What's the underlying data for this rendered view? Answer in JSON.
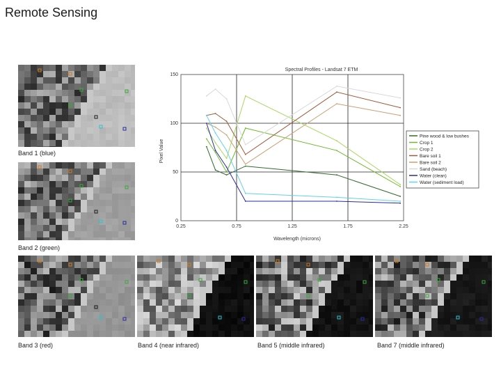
{
  "slide": {
    "title": "Remote Sensing"
  },
  "bands": [
    {
      "caption": "Band 1 (blue)"
    },
    {
      "caption": "Band 2 (green)"
    },
    {
      "caption": "Band 3 (red)"
    },
    {
      "caption": "Band 4 (near infrared)"
    },
    {
      "caption": "Band 5 (middle infrared)"
    },
    {
      "caption": "Band 7 (middle infrared)"
    }
  ],
  "colors": {
    "pine": "#2e6b2a",
    "crop1": "#6fb82a",
    "crop2": "#a8d860",
    "bare1": "#a05a3a",
    "bare2": "#c8a070",
    "sand": "#d8d8d8",
    "water_clean": "#2a2aa0",
    "water_sed": "#60d0f0"
  },
  "chart_data": {
    "type": "line",
    "title": "Spectral Profiles - Landsat 7 ETM",
    "xlabel": "Wavelength (microns)",
    "ylabel": "Pixel Value",
    "xlim": [
      0.25,
      2.25
    ],
    "ylim": [
      0,
      150
    ],
    "x_ticks": [
      "0.25",
      "0.75",
      "1.25",
      "1.75",
      "2.25"
    ],
    "y_ticks": [
      "0",
      "50",
      "100",
      "150"
    ],
    "grid": true,
    "legend_position": "right",
    "x": [
      0.48,
      0.56,
      0.66,
      0.83,
      1.65,
      2.22
    ],
    "series": [
      {
        "name": "Pine wood & low bushes",
        "values": [
          76,
          52,
          47,
          56,
          47,
          25
        ],
        "color": "#2e6b2a"
      },
      {
        "name": "Crop 1",
        "values": [
          84,
          70,
          50,
          95,
          72,
          35
        ],
        "color": "#6fb82a"
      },
      {
        "name": "Crop 2",
        "values": [
          95,
          80,
          64,
          128,
          82,
          37
        ],
        "color": "#a8d860"
      },
      {
        "name": "Bare soil 1",
        "values": [
          108,
          110,
          102,
          68,
          132,
          116
        ],
        "color": "#a05a3a"
      },
      {
        "name": "Bare soil 2",
        "values": [
          100,
          96,
          88,
          58,
          120,
          108
        ],
        "color": "#c8a070"
      },
      {
        "name": "Sand (beach)",
        "values": [
          128,
          135,
          125,
          78,
          138,
          126
        ],
        "color": "#d8d8d8"
      },
      {
        "name": "Water (clean)",
        "values": [
          100,
          72,
          55,
          20,
          20,
          18
        ],
        "color": "#2a2aa0"
      },
      {
        "name": "Water (sediment load)",
        "values": [
          108,
          90,
          72,
          28,
          24,
          20
        ],
        "color": "#60d0f0"
      }
    ]
  }
}
